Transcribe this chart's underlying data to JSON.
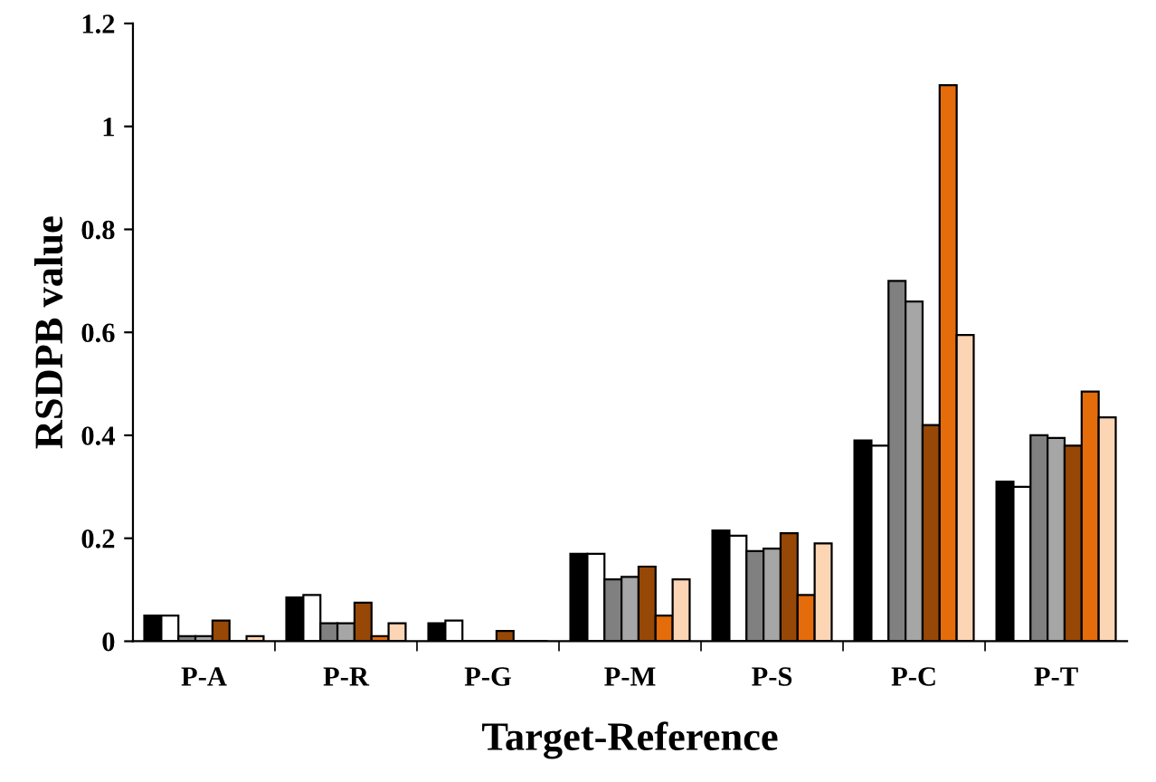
{
  "chart_data": {
    "type": "bar",
    "xlabel": "Target-Reference",
    "ylabel": "RSDPB value",
    "categories": [
      "P-A",
      "P-R",
      "P-G",
      "P-M",
      "P-S",
      "P-C",
      "P-T"
    ],
    "series": [
      {
        "color": "#000000",
        "values": [
          0.05,
          0.085,
          0.035,
          0.17,
          0.215,
          0.39,
          0.31
        ]
      },
      {
        "color": "#ffffff",
        "values": [
          0.05,
          0.09,
          0.04,
          0.17,
          0.205,
          0.38,
          0.3
        ]
      },
      {
        "color": "#808080",
        "values": [
          0.01,
          0.035,
          null,
          0.12,
          0.175,
          0.7,
          0.4
        ]
      },
      {
        "color": "#a6a6a6",
        "values": [
          0.01,
          0.035,
          null,
          0.125,
          0.18,
          0.66,
          0.395
        ]
      },
      {
        "color": "#974806",
        "values": [
          0.04,
          0.075,
          0.02,
          0.145,
          0.21,
          0.42,
          0.38
        ]
      },
      {
        "color": "#e46c0a",
        "values": [
          null,
          0.01,
          null,
          0.05,
          0.09,
          1.08,
          0.485
        ]
      },
      {
        "color": "#fcd5b5",
        "values": [
          0.01,
          0.035,
          null,
          0.12,
          0.19,
          0.595,
          0.435
        ]
      }
    ],
    "ylim": [
      0,
      1.2
    ],
    "yticks": [
      0,
      0.2,
      0.4,
      0.6,
      0.8,
      1,
      1.2
    ],
    "grid": false,
    "legend": false
  }
}
